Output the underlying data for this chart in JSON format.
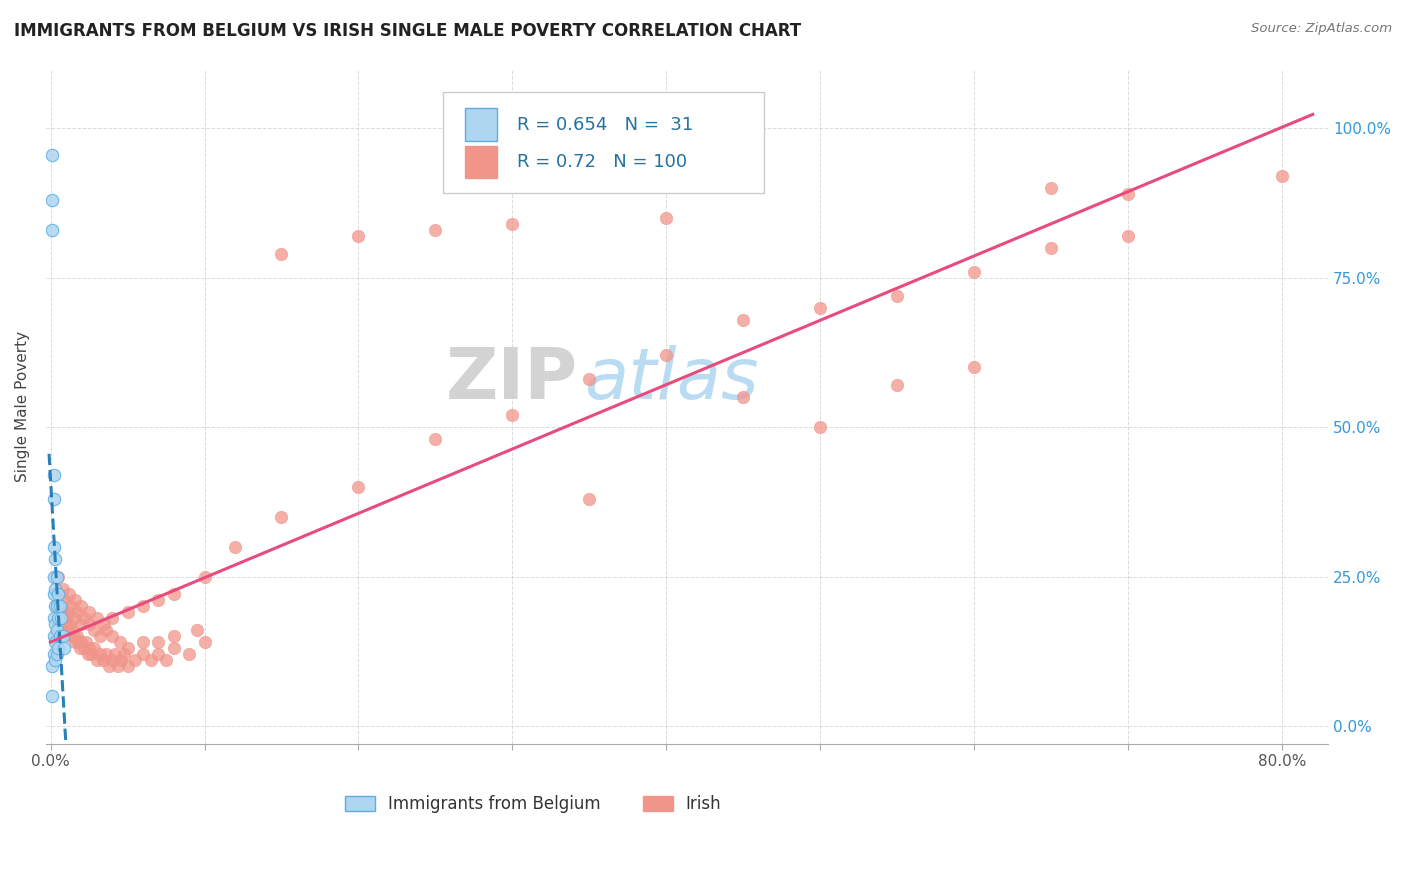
{
  "title": "IMMIGRANTS FROM BELGIUM VS IRISH SINGLE MALE POVERTY CORRELATION CHART",
  "source": "Source: ZipAtlas.com",
  "ylabel_label": "Single Male Poverty",
  "x_ticks": [
    "0.0%",
    "",
    "",
    "",
    "",
    "",
    "",
    "",
    "80.0%"
  ],
  "x_tick_vals": [
    0.0,
    0.1,
    0.2,
    0.3,
    0.4,
    0.5,
    0.6,
    0.7,
    0.8
  ],
  "y_tick_vals": [
    0.0,
    0.25,
    0.5,
    0.75,
    1.0
  ],
  "y_tick_labels": [
    "0.0%",
    "25.0%",
    "50.0%",
    "75.0%",
    "100.0%"
  ],
  "xlim": [
    -0.003,
    0.83
  ],
  "ylim": [
    -0.03,
    1.1
  ],
  "belgium_R": 0.654,
  "belgium_N": 31,
  "irish_R": 0.72,
  "irish_N": 100,
  "belgium_color": "#aed6f1",
  "ireland_color": "#f1948a",
  "belgium_edge": "#5dade2",
  "belgium_line_color": "#2980b9",
  "irish_line_color": "#e74c7c",
  "watermark_zip": "ZIP",
  "watermark_atlas": "atlas",
  "legend_bottom_label_bel": "Immigrants from Belgium",
  "legend_bottom_label_iri": "Irish",
  "bel_x": [
    0.001,
    0.001,
    0.001,
    0.001,
    0.001,
    0.002,
    0.002,
    0.002,
    0.002,
    0.002,
    0.002,
    0.002,
    0.002,
    0.003,
    0.003,
    0.003,
    0.003,
    0.003,
    0.003,
    0.004,
    0.004,
    0.004,
    0.004,
    0.005,
    0.005,
    0.005,
    0.006,
    0.006,
    0.007,
    0.008,
    0.009
  ],
  "bel_y": [
    0.955,
    0.88,
    0.83,
    0.1,
    0.05,
    0.42,
    0.38,
    0.3,
    0.25,
    0.22,
    0.18,
    0.15,
    0.12,
    0.28,
    0.23,
    0.2,
    0.17,
    0.14,
    0.11,
    0.25,
    0.2,
    0.16,
    0.12,
    0.22,
    0.18,
    0.13,
    0.2,
    0.15,
    0.18,
    0.15,
    0.13
  ],
  "irish_x": [
    0.005,
    0.007,
    0.008,
    0.009,
    0.01,
    0.011,
    0.012,
    0.013,
    0.014,
    0.015,
    0.016,
    0.017,
    0.018,
    0.019,
    0.02,
    0.022,
    0.023,
    0.024,
    0.025,
    0.026,
    0.028,
    0.03,
    0.032,
    0.034,
    0.036,
    0.038,
    0.04,
    0.042,
    0.044,
    0.046,
    0.048,
    0.05,
    0.055,
    0.06,
    0.065,
    0.07,
    0.075,
    0.08,
    0.09,
    0.1,
    0.005,
    0.007,
    0.009,
    0.011,
    0.013,
    0.015,
    0.017,
    0.02,
    0.022,
    0.025,
    0.028,
    0.032,
    0.036,
    0.04,
    0.045,
    0.05,
    0.06,
    0.07,
    0.08,
    0.095,
    0.005,
    0.008,
    0.012,
    0.016,
    0.02,
    0.025,
    0.03,
    0.035,
    0.04,
    0.05,
    0.06,
    0.07,
    0.08,
    0.1,
    0.12,
    0.15,
    0.2,
    0.25,
    0.3,
    0.35,
    0.4,
    0.45,
    0.5,
    0.55,
    0.6,
    0.65,
    0.7,
    0.2,
    0.3,
    0.4,
    0.15,
    0.25,
    0.35,
    0.45,
    0.55,
    0.65,
    0.5,
    0.6,
    0.7,
    0.8
  ],
  "irish_y": [
    0.2,
    0.18,
    0.19,
    0.17,
    0.18,
    0.16,
    0.17,
    0.15,
    0.16,
    0.15,
    0.14,
    0.15,
    0.14,
    0.13,
    0.14,
    0.13,
    0.14,
    0.12,
    0.13,
    0.12,
    0.13,
    0.11,
    0.12,
    0.11,
    0.12,
    0.1,
    0.11,
    0.12,
    0.1,
    0.11,
    0.12,
    0.1,
    0.11,
    0.12,
    0.11,
    0.12,
    0.11,
    0.13,
    0.12,
    0.14,
    0.22,
    0.2,
    0.21,
    0.19,
    0.2,
    0.18,
    0.19,
    0.17,
    0.18,
    0.17,
    0.16,
    0.15,
    0.16,
    0.15,
    0.14,
    0.13,
    0.14,
    0.14,
    0.15,
    0.16,
    0.25,
    0.23,
    0.22,
    0.21,
    0.2,
    0.19,
    0.18,
    0.17,
    0.18,
    0.19,
    0.2,
    0.21,
    0.22,
    0.25,
    0.3,
    0.35,
    0.4,
    0.48,
    0.52,
    0.58,
    0.62,
    0.68,
    0.7,
    0.72,
    0.76,
    0.8,
    0.82,
    0.82,
    0.84,
    0.85,
    0.79,
    0.83,
    0.38,
    0.55,
    0.57,
    0.9,
    0.5,
    0.6,
    0.89,
    0.92
  ]
}
